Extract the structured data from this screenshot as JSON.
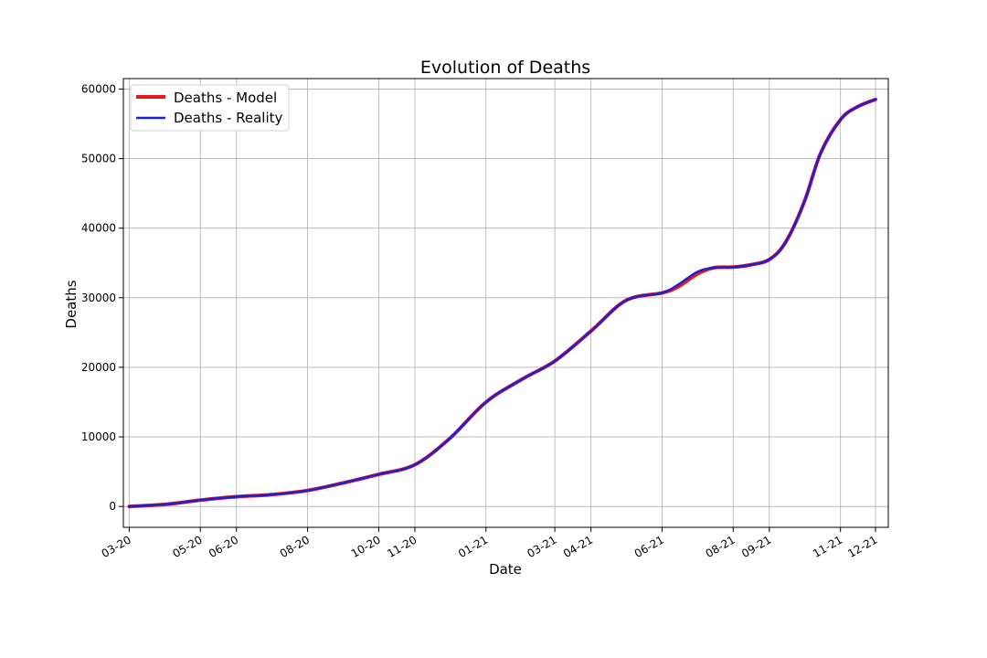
{
  "chart_data": {
    "type": "line",
    "title": "Evolution of Deaths",
    "xlabel": "Date",
    "ylabel": "Deaths",
    "grid": true,
    "legend_position": "top-left",
    "x_ticks": [
      "03-20",
      "05-20",
      "06-20",
      "08-20",
      "10-20",
      "11-20",
      "01-21",
      "03-21",
      "04-21",
      "06-21",
      "08-21",
      "09-21",
      "11-21",
      "12-21"
    ],
    "y_ticks": [
      0,
      10000,
      20000,
      30000,
      40000,
      50000,
      60000
    ],
    "ylim": [
      -3000,
      61500
    ],
    "x_domain": [
      "2020-02-25",
      "2021-12-12"
    ],
    "x": [
      "2020-03-01",
      "2020-04-01",
      "2020-05-01",
      "2020-06-01",
      "2020-07-01",
      "2020-08-01",
      "2020-09-01",
      "2020-10-01",
      "2020-11-01",
      "2020-12-01",
      "2021-01-01",
      "2021-02-01",
      "2021-03-01",
      "2021-04-01",
      "2021-05-01",
      "2021-06-01",
      "2021-06-15",
      "2021-07-01",
      "2021-07-15",
      "2021-08-01",
      "2021-08-15",
      "2021-09-01",
      "2021-09-15",
      "2021-10-01",
      "2021-10-15",
      "2021-11-01",
      "2021-11-15",
      "2021-12-01"
    ],
    "series": [
      {
        "name": "Deaths - Model",
        "color": "#e31a1c",
        "values": [
          0,
          300,
          900,
          1400,
          1700,
          2300,
          3400,
          4600,
          6000,
          9800,
          15000,
          18300,
          20900,
          25200,
          29600,
          30700,
          31600,
          33400,
          34300,
          34400,
          34700,
          35500,
          38000,
          43800,
          50800,
          55600,
          57400,
          58500
        ]
      },
      {
        "name": "Deaths - Reality",
        "color": "#1f1fd1",
        "values": [
          0,
          300,
          900,
          1400,
          1700,
          2300,
          3400,
          4600,
          6000,
          9800,
          15000,
          18300,
          20900,
          25200,
          29600,
          30700,
          31900,
          33700,
          34300,
          34400,
          34700,
          35500,
          38000,
          43800,
          50800,
          55600,
          57400,
          58500
        ]
      }
    ]
  }
}
